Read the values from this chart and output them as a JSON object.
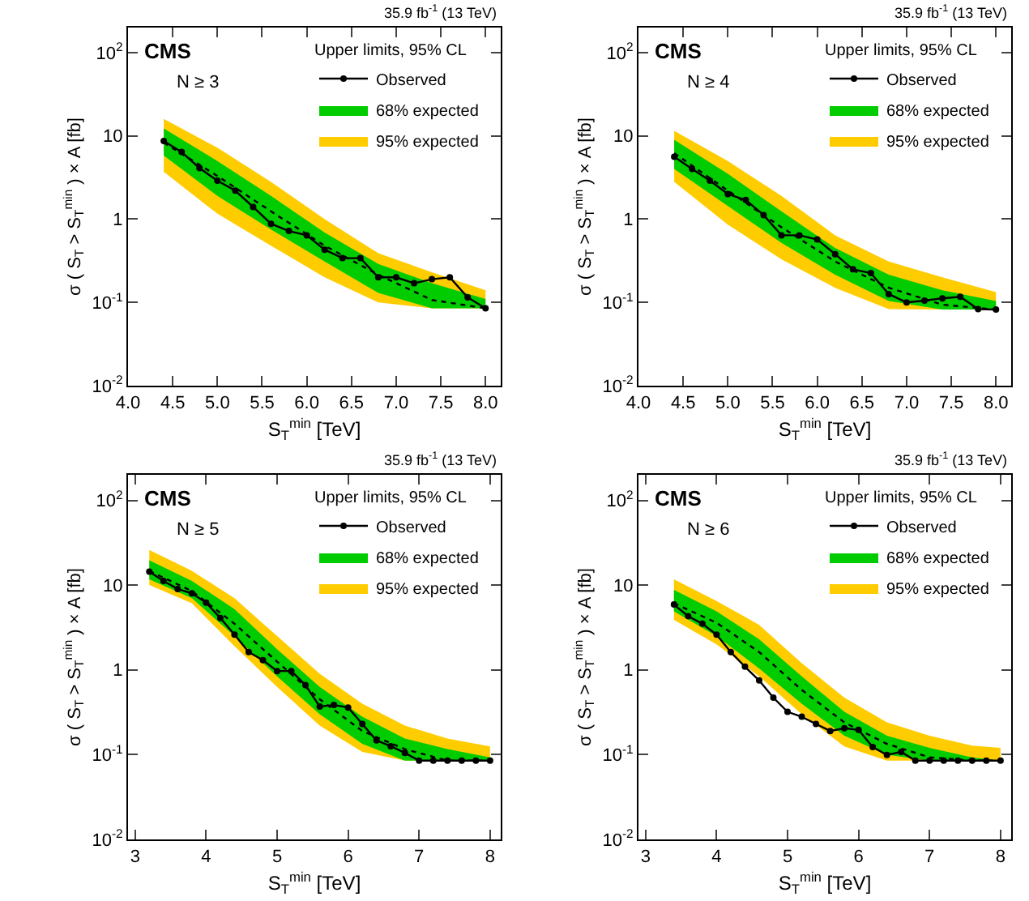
{
  "chart_data": [
    {
      "type": "line",
      "xlabel": "S$_{T}$$^{min}$ [TeV]",
      "ylabel": "σ ( S$_{T}$ > S$_{T}$$^{min}$ ) × A [fb]",
      "legend_title": "Upper limits, 95% CL",
      "legend": "top right",
      "log": "y",
      "grid": false,
      "annotations": [
        "35.9 fb$^{-1}$ (13 TeV)",
        "CMS",
        "N ≥ 3"
      ],
      "xlim": [
        4.0,
        8.17
      ],
      "xticks": [
        {
          "value": 4,
          "label": "4.0"
        },
        4.5,
        {
          "value": 5,
          "label": "5.0"
        },
        5.5,
        {
          "value": 6,
          "label": "6.0"
        },
        6.5,
        {
          "value": 7,
          "label": "7.0"
        },
        7.5,
        {
          "value": 8,
          "label": "8.0"
        }
      ],
      "ylim": [
        0.01,
        200
      ],
      "yticks": [
        {
          "value": 0.01,
          "label": "10$^{-2}$"
        },
        {
          "value": 0.1,
          "label": "10$^{-1}$"
        },
        1,
        10,
        {
          "value": 100,
          "label": "10$^{2}$"
        }
      ],
      "series": [
        {
          "name": "Observed",
          "color": "#000000",
          "marker": "circle",
          "line_style": "solid",
          "x": [
            4.4,
            4.6,
            4.8,
            5.0,
            5.2,
            5.4,
            5.6,
            5.8,
            6.0,
            6.2,
            6.4,
            6.6,
            6.8,
            7.0,
            7.2,
            7.4,
            7.6,
            7.8,
            8.0
          ],
          "values": [
            8.7,
            6.4,
            4.1,
            2.9,
            2.2,
            1.4,
            0.88,
            0.72,
            0.64,
            0.43,
            0.34,
            0.34,
            0.2,
            0.2,
            0.17,
            0.19,
            0.2,
            0.115,
            0.085
          ]
        },
        {
          "name": "68% expected",
          "color": "#00cc00",
          "x": [
            4.4,
            5.0,
            5.6,
            6.2,
            6.8,
            7.4,
            8.0
          ],
          "values": [
            null,
            null,
            null,
            null,
            null,
            null,
            null
          ],
          "lower": [
            5.8,
            1.9,
            0.75,
            0.31,
            0.13,
            0.085,
            0.085
          ],
          "upper": [
            12.3,
            5.0,
            1.9,
            0.69,
            0.29,
            0.17,
            0.11
          ]
        },
        {
          "name": "95% expected",
          "color": "#ffcc00",
          "x": [
            4.4,
            5.0,
            5.6,
            6.2,
            6.8,
            7.4,
            8.0
          ],
          "values": [
            null,
            null,
            null,
            null,
            null,
            null,
            null
          ],
          "lower": [
            3.7,
            1.16,
            0.48,
            0.2,
            0.1,
            0.085,
            0.085
          ],
          "upper": [
            16,
            7.2,
            2.8,
            1.0,
            0.39,
            0.23,
            0.14
          ]
        },
        {
          "color": "#000000",
          "marker": "none",
          "line_style": "dotted",
          "x": [
            4.4,
            5.0,
            5.6,
            6.2,
            6.8,
            7.4,
            8.0
          ],
          "values": [
            8.3,
            3.3,
            1.24,
            0.48,
            0.215,
            0.107,
            0.085
          ]
        }
      ]
    },
    {
      "type": "line",
      "xlabel": "S$_{T}$$^{min}$ [TeV]",
      "ylabel": "σ ( S$_{T}$ > S$_{T}$$^{min}$ ) × A [fb]",
      "legend_title": "Upper limits, 95% CL",
      "legend": "top right",
      "log": "y",
      "grid": false,
      "annotations": [
        "35.9 fb$^{-1}$ (13 TeV)",
        "CMS",
        "N ≥ 4"
      ],
      "xlim": [
        4.0,
        8.17
      ],
      "xticks": [
        {
          "value": 4,
          "label": "4.0"
        },
        4.5,
        {
          "value": 5,
          "label": "5.0"
        },
        5.5,
        {
          "value": 6,
          "label": "6.0"
        },
        6.5,
        {
          "value": 7,
          "label": "7.0"
        },
        7.5,
        {
          "value": 8,
          "label": "8.0"
        }
      ],
      "ylim": [
        0.01,
        200
      ],
      "yticks": [
        {
          "value": 0.01,
          "label": "10$^{-2}$"
        },
        {
          "value": 0.1,
          "label": "10$^{-1}$"
        },
        1,
        10,
        {
          "value": 100,
          "label": "10$^{2}$"
        }
      ],
      "series": [
        {
          "name": "Observed",
          "color": "#000000",
          "marker": "circle",
          "line_style": "solid",
          "x": [
            4.4,
            4.6,
            4.8,
            5.0,
            5.2,
            5.4,
            5.6,
            5.8,
            6.0,
            6.2,
            6.4,
            6.6,
            6.8,
            7.0,
            7.2,
            7.4,
            7.6,
            7.8,
            8.0
          ],
          "values": [
            5.6,
            4.0,
            2.9,
            2.0,
            1.7,
            1.12,
            0.64,
            0.64,
            0.57,
            0.38,
            0.25,
            0.225,
            0.126,
            0.1,
            0.105,
            0.112,
            0.117,
            0.083,
            0.082
          ]
        },
        {
          "name": "68% expected",
          "color": "#00cc00",
          "x": [
            4.4,
            5.0,
            5.6,
            6.2,
            6.8,
            7.4,
            8.0
          ],
          "values": [
            null,
            null,
            null,
            null,
            null,
            null,
            null
          ],
          "lower": [
            4.0,
            1.44,
            0.52,
            0.215,
            0.104,
            0.082,
            0.082
          ],
          "upper": [
            9.0,
            3.5,
            1.24,
            0.45,
            0.215,
            0.14,
            0.104
          ]
        },
        {
          "name": "95% expected",
          "color": "#ffcc00",
          "x": [
            4.4,
            5.0,
            5.6,
            6.2,
            6.8,
            7.4,
            8.0
          ],
          "values": [
            null,
            null,
            null,
            null,
            null,
            null,
            null
          ],
          "lower": [
            2.8,
            0.86,
            0.33,
            0.15,
            0.083,
            0.082,
            0.082
          ],
          "upper": [
            11.5,
            5.0,
            1.9,
            0.64,
            0.31,
            0.2,
            0.133
          ]
        },
        {
          "color": "#000000",
          "marker": "none",
          "line_style": "dotted",
          "x": [
            4.4,
            5.0,
            5.6,
            6.2,
            6.8,
            7.4,
            8.0
          ],
          "values": [
            6.2,
            2.2,
            0.8,
            0.31,
            0.15,
            0.094,
            0.082
          ]
        }
      ]
    },
    {
      "type": "line",
      "xlabel": "S$_{T}$$^{min}$ [TeV]",
      "ylabel": "σ ( S$_{T}$ > S$_{T}$$^{min}$ ) × A [fb]",
      "legend_title": "Upper limits, 95% CL",
      "legend": "top right",
      "log": "y",
      "grid": false,
      "annotations": [
        "35.9 fb$^{-1}$ (13 TeV)",
        "CMS",
        "N ≥ 5"
      ],
      "xlim": [
        2.9,
        8.15
      ],
      "xticks": [
        3,
        4,
        5,
        6,
        7,
        8
      ],
      "ylim": [
        0.01,
        200
      ],
      "yticks": [
        {
          "value": 0.01,
          "label": "10$^{-2}$"
        },
        {
          "value": 0.1,
          "label": "10$^{-1}$"
        },
        1,
        10,
        {
          "value": 100,
          "label": "10$^{2}$"
        }
      ],
      "series": [
        {
          "name": "Observed",
          "color": "#000000",
          "marker": "circle",
          "line_style": "solid",
          "x": [
            3.2,
            3.4,
            3.6,
            3.8,
            4.0,
            4.2,
            4.4,
            4.6,
            4.8,
            5.0,
            5.2,
            5.4,
            5.6,
            5.8,
            6.0,
            6.2,
            6.4,
            6.6,
            6.8,
            7.0,
            7.2,
            7.4,
            7.6,
            7.8,
            8.0
          ],
          "values": [
            14.4,
            11.2,
            9.0,
            8.0,
            6.2,
            4.1,
            2.6,
            1.62,
            1.3,
            0.97,
            0.97,
            0.66,
            0.37,
            0.385,
            0.36,
            0.23,
            0.147,
            0.126,
            0.105,
            0.085,
            0.085,
            0.085,
            0.085,
            0.085,
            0.085
          ]
        },
        {
          "name": "68% expected",
          "color": "#00cc00",
          "x": [
            3.2,
            3.8,
            4.4,
            5.0,
            5.6,
            6.2,
            6.8,
            7.4,
            8.0
          ],
          "values": [
            null,
            null,
            null,
            null,
            null,
            null,
            null,
            null,
            null
          ],
          "lower": [
            11.7,
            7.0,
            2.5,
            0.84,
            0.3,
            0.134,
            0.085,
            0.085,
            0.085
          ],
          "upper": [
            19.6,
            11.2,
            5.2,
            1.75,
            0.63,
            0.28,
            0.155,
            0.116,
            0.093
          ]
        },
        {
          "name": "95% expected",
          "color": "#ffcc00",
          "x": [
            3.2,
            3.8,
            4.4,
            5.0,
            5.6,
            6.2,
            6.8,
            7.4,
            8.0
          ],
          "values": [
            null,
            null,
            null,
            null,
            null,
            null,
            null,
            null,
            null
          ],
          "lower": [
            10,
            6.1,
            1.9,
            0.63,
            0.22,
            0.108,
            0.085,
            0.085,
            0.085
          ],
          "upper": [
            26,
            14.7,
            7.0,
            2.5,
            0.9,
            0.4,
            0.22,
            0.155,
            0.125
          ]
        },
        {
          "color": "#000000",
          "marker": "none",
          "line_style": "dotted",
          "x": [
            3.2,
            3.8,
            4.4,
            5.0,
            5.6,
            6.2,
            6.8,
            7.4,
            8.0
          ],
          "values": [
            14.7,
            8.5,
            3.5,
            1.25,
            0.45,
            0.19,
            0.116,
            0.085,
            0.085
          ]
        }
      ]
    },
    {
      "type": "line",
      "xlabel": "S$_{T}$$^{min}$ [TeV]",
      "ylabel": "σ ( S$_{T}$ > S$_{T}$$^{min}$ ) × A [fb]",
      "legend_title": "Upper limits, 95% CL",
      "legend": "top right",
      "log": "y",
      "grid": false,
      "annotations": [
        "35.9 fb$^{-1}$ (13 TeV)",
        "CMS",
        "N ≥ 6"
      ],
      "xlim": [
        2.9,
        8.15
      ],
      "xticks": [
        3,
        4,
        5,
        6,
        7,
        8
      ],
      "ylim": [
        0.01,
        200
      ],
      "yticks": [
        {
          "value": 0.01,
          "label": "10$^{-2}$"
        },
        {
          "value": 0.1,
          "label": "10$^{-1}$"
        },
        1,
        10,
        {
          "value": 100,
          "label": "10$^{2}$"
        }
      ],
      "series": [
        {
          "name": "Observed",
          "color": "#000000",
          "marker": "circle",
          "line_style": "solid",
          "x": [
            3.4,
            3.6,
            3.8,
            4.0,
            4.2,
            4.4,
            4.6,
            4.8,
            5.0,
            5.2,
            5.4,
            5.6,
            5.8,
            6.0,
            6.2,
            6.4,
            6.6,
            6.8,
            7.0,
            7.2,
            7.4,
            7.6,
            7.8,
            8.0
          ],
          "values": [
            5.9,
            4.3,
            3.5,
            2.6,
            1.62,
            1.09,
            0.75,
            0.47,
            0.32,
            0.28,
            0.23,
            0.19,
            0.205,
            0.196,
            0.123,
            0.099,
            0.108,
            0.085,
            0.085,
            0.085,
            0.085,
            0.085,
            0.085,
            0.085
          ]
        },
        {
          "name": "68% expected",
          "color": "#00cc00",
          "x": [
            3.4,
            4.0,
            4.6,
            5.2,
            5.8,
            6.4,
            7.0,
            7.6,
            8.0
          ],
          "values": [
            null,
            null,
            null,
            null,
            null,
            null,
            null,
            null,
            null
          ],
          "lower": [
            4.9,
            2.5,
            1.04,
            0.4,
            0.167,
            0.1,
            0.085,
            0.085,
            0.085
          ],
          "upper": [
            8.8,
            4.9,
            2.3,
            0.84,
            0.32,
            0.167,
            0.12,
            0.093,
            0.085
          ]
        },
        {
          "name": "95% expected",
          "color": "#ffcc00",
          "x": [
            3.4,
            4.0,
            4.6,
            5.2,
            5.8,
            6.4,
            7.0,
            7.6,
            8.0
          ],
          "values": [
            null,
            null,
            null,
            null,
            null,
            null,
            null,
            null,
            null
          ],
          "lower": [
            3.9,
            2.0,
            0.84,
            0.3,
            0.125,
            0.085,
            0.085,
            0.085,
            0.085
          ],
          "upper": [
            11.7,
            6.5,
            3.4,
            1.2,
            0.47,
            0.24,
            0.167,
            0.128,
            0.12
          ]
        },
        {
          "color": "#000000",
          "marker": "none",
          "line_style": "dotted",
          "x": [
            3.4,
            4.0,
            4.6,
            5.2,
            5.8,
            6.4,
            7.0,
            7.6,
            8.0
          ],
          "values": [
            6.1,
            3.6,
            1.62,
            0.58,
            0.24,
            0.134,
            0.093,
            0.085,
            0.085
          ]
        }
      ]
    }
  ]
}
